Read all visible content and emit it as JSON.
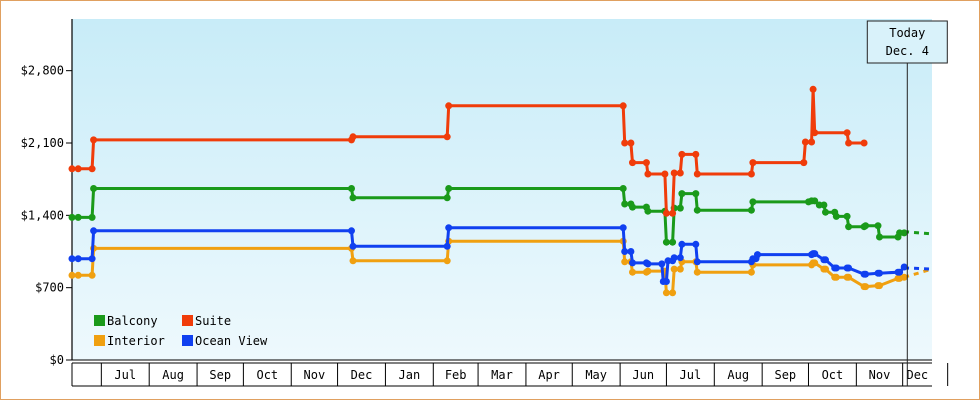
{
  "chart_data": {
    "type": "line",
    "title": "",
    "xlabel": "",
    "ylabel": "",
    "ylim": [
      0,
      3300
    ],
    "yticks": [
      {
        "value": 0,
        "label": "$0"
      },
      {
        "value": 700,
        "label": "$700"
      },
      {
        "value": 1400,
        "label": "$1,400"
      },
      {
        "value": 2100,
        "label": "$2,100"
      },
      {
        "value": 2800,
        "label": "$2,800"
      }
    ],
    "xlim": [
      "2019-06-12",
      "2020-12-20"
    ],
    "months": [
      {
        "label": "Jul",
        "start": "2019-07-01",
        "end": "2019-07-31"
      },
      {
        "label": "Aug",
        "start": "2019-08-01",
        "end": "2019-08-31"
      },
      {
        "label": "Sep",
        "start": "2019-09-01",
        "end": "2019-09-30"
      },
      {
        "label": "Oct",
        "start": "2019-10-01",
        "end": "2019-10-31"
      },
      {
        "label": "Nov",
        "start": "2019-11-01",
        "end": "2019-11-30"
      },
      {
        "label": "Dec",
        "start": "2019-12-01",
        "end": "2019-12-31"
      },
      {
        "label": "Jan",
        "start": "2020-01-01",
        "end": "2020-01-31"
      },
      {
        "label": "Feb",
        "start": "2020-02-01",
        "end": "2020-02-29"
      },
      {
        "label": "Mar",
        "start": "2020-03-01",
        "end": "2020-03-31"
      },
      {
        "label": "Apr",
        "start": "2020-04-01",
        "end": "2020-04-30"
      },
      {
        "label": "May",
        "start": "2020-05-01",
        "end": "2020-05-31"
      },
      {
        "label": "Jun",
        "start": "2020-06-01",
        "end": "2020-06-30"
      },
      {
        "label": "Jul",
        "start": "2020-07-01",
        "end": "2020-07-31"
      },
      {
        "label": "Aug",
        "start": "2020-08-01",
        "end": "2020-08-31"
      },
      {
        "label": "Sep",
        "start": "2020-09-01",
        "end": "2020-09-30"
      },
      {
        "label": "Oct",
        "start": "2020-10-01",
        "end": "2020-10-31"
      },
      {
        "label": "Nov",
        "start": "2020-11-01",
        "end": "2020-11-30"
      },
      {
        "label": "Dec",
        "start": "2020-12-01",
        "end": "2020-12-31"
      }
    ],
    "today": {
      "line1": "Today",
      "line2": "Dec. 4",
      "date": "2020-12-04"
    },
    "legend_position": "bottom-left",
    "grid": false,
    "series": [
      {
        "name": "Balcony",
        "color": "#1a9a1a",
        "x": [
          "2019-06-12",
          "2019-06-16",
          "2019-06-25",
          "2019-06-26",
          "2019-12-10",
          "2019-12-11",
          "2020-02-10",
          "2020-02-11",
          "2020-06-03",
          "2020-06-04",
          "2020-06-08",
          "2020-06-09",
          "2020-06-18",
          "2020-06-19",
          "2020-06-30",
          "2020-07-01",
          "2020-07-05",
          "2020-07-06",
          "2020-07-10",
          "2020-07-11",
          "2020-07-20",
          "2020-07-21",
          "2020-08-25",
          "2020-08-26",
          "2020-10-01",
          "2020-10-03",
          "2020-10-05",
          "2020-10-08",
          "2020-10-11",
          "2020-10-12",
          "2020-10-18",
          "2020-10-19",
          "2020-10-26",
          "2020-10-27",
          "2020-11-06",
          "2020-11-07",
          "2020-11-15",
          "2020-11-16",
          "2020-11-28",
          "2020-11-29",
          "2020-12-02"
        ],
        "y": [
          1380,
          1380,
          1380,
          1660,
          1660,
          1570,
          1570,
          1660,
          1660,
          1510,
          1510,
          1480,
          1480,
          1440,
          1440,
          1140,
          1140,
          1470,
          1470,
          1610,
          1610,
          1450,
          1450,
          1530,
          1530,
          1540,
          1540,
          1500,
          1500,
          1430,
          1430,
          1390,
          1390,
          1290,
          1290,
          1300,
          1300,
          1190,
          1190,
          1230,
          1230
        ],
        "forecast_x": [
          "2020-12-04",
          "2020-12-20"
        ],
        "forecast_y": [
          1240,
          1220
        ]
      },
      {
        "name": "Suite",
        "color": "#f03c0a",
        "x": [
          "2019-06-12",
          "2019-06-16",
          "2019-06-25",
          "2019-06-26",
          "2019-12-10",
          "2019-12-11",
          "2020-02-10",
          "2020-02-11",
          "2020-06-03",
          "2020-06-04",
          "2020-06-08",
          "2020-06-09",
          "2020-06-18",
          "2020-06-19",
          "2020-06-30",
          "2020-07-01",
          "2020-07-05",
          "2020-07-06",
          "2020-07-10",
          "2020-07-11",
          "2020-07-20",
          "2020-07-21",
          "2020-08-25",
          "2020-08-26",
          "2020-09-28",
          "2020-09-29",
          "2020-10-03",
          "2020-10-04",
          "2020-10-05",
          "2020-10-26",
          "2020-10-27",
          "2020-11-06"
        ],
        "y": [
          1850,
          1850,
          1850,
          2130,
          2130,
          2160,
          2160,
          2460,
          2460,
          2100,
          2100,
          1910,
          1910,
          1800,
          1800,
          1420,
          1420,
          1810,
          1810,
          1990,
          1990,
          1800,
          1800,
          1910,
          1910,
          2110,
          2110,
          2620,
          2200,
          2200,
          2100,
          2100
        ],
        "forecast_x": [],
        "forecast_y": []
      },
      {
        "name": "Interior",
        "color": "#f0a010",
        "x": [
          "2019-06-12",
          "2019-06-16",
          "2019-06-25",
          "2019-06-26",
          "2019-12-10",
          "2019-12-11",
          "2020-02-10",
          "2020-02-11",
          "2020-06-03",
          "2020-06-04",
          "2020-06-08",
          "2020-06-09",
          "2020-06-18",
          "2020-06-19",
          "2020-06-30",
          "2020-07-01",
          "2020-07-05",
          "2020-07-06",
          "2020-07-10",
          "2020-07-11",
          "2020-07-20",
          "2020-07-21",
          "2020-08-25",
          "2020-08-26",
          "2020-10-03",
          "2020-10-04",
          "2020-10-05",
          "2020-10-11",
          "2020-10-12",
          "2020-10-18",
          "2020-10-19",
          "2020-10-26",
          "2020-10-27",
          "2020-11-06",
          "2020-11-07",
          "2020-11-15",
          "2020-11-16",
          "2020-11-28",
          "2020-11-29",
          "2020-12-02"
        ],
        "y": [
          820,
          820,
          820,
          1080,
          1080,
          960,
          960,
          1150,
          1150,
          950,
          950,
          850,
          850,
          860,
          860,
          650,
          650,
          880,
          880,
          950,
          950,
          850,
          850,
          920,
          920,
          940,
          940,
          880,
          880,
          800,
          800,
          800,
          800,
          710,
          710,
          720,
          720,
          790,
          790,
          800
        ],
        "forecast_x": [
          "2020-12-04",
          "2020-12-20"
        ],
        "forecast_y": [
          810,
          880
        ]
      },
      {
        "name": "Ocean View",
        "color": "#1040f0",
        "x": [
          "2019-06-12",
          "2019-06-16",
          "2019-06-25",
          "2019-06-26",
          "2019-12-10",
          "2019-12-11",
          "2020-02-10",
          "2020-02-11",
          "2020-06-03",
          "2020-06-04",
          "2020-06-08",
          "2020-06-09",
          "2020-06-18",
          "2020-06-19",
          "2020-06-28",
          "2020-06-29",
          "2020-07-01",
          "2020-07-02",
          "2020-07-05",
          "2020-07-06",
          "2020-07-10",
          "2020-07-11",
          "2020-07-20",
          "2020-07-21",
          "2020-08-25",
          "2020-08-26",
          "2020-08-28",
          "2020-08-29",
          "2020-10-03",
          "2020-10-04",
          "2020-10-05",
          "2020-10-11",
          "2020-10-12",
          "2020-10-18",
          "2020-10-19",
          "2020-10-26",
          "2020-10-27",
          "2020-11-06",
          "2020-11-07",
          "2020-11-15",
          "2020-11-16",
          "2020-11-28",
          "2020-11-29",
          "2020-12-02"
        ],
        "y": [
          980,
          980,
          980,
          1250,
          1250,
          1100,
          1100,
          1280,
          1280,
          1050,
          1050,
          940,
          940,
          930,
          930,
          760,
          760,
          960,
          960,
          990,
          990,
          1120,
          1120,
          950,
          950,
          980,
          980,
          1020,
          1020,
          1030,
          1030,
          970,
          970,
          890,
          890,
          890,
          890,
          830,
          830,
          840,
          840,
          850,
          850,
          900
        ],
        "forecast_x": [
          "2020-12-04",
          "2020-12-20"
        ],
        "forecast_y": [
          890,
          880
        ]
      }
    ]
  }
}
